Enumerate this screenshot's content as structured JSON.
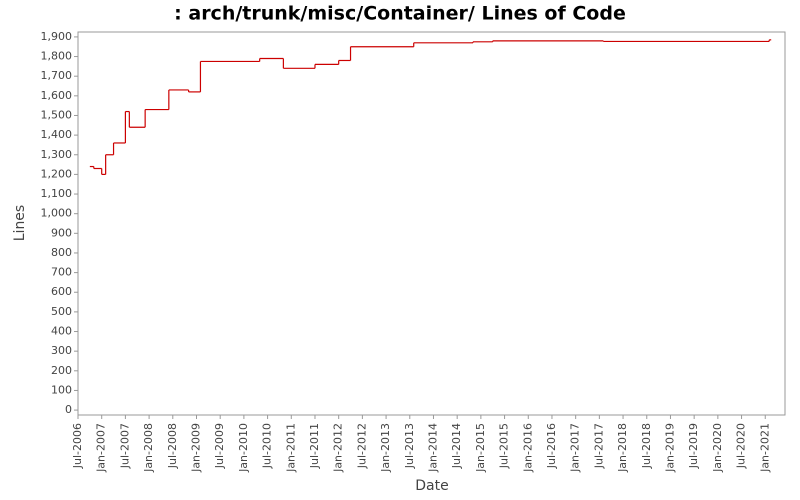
{
  "chart_data": {
    "type": "step",
    "title": ": arch/trunk/misc/Container/ Lines of Code",
    "x_label": "Date",
    "y_label": "Lines",
    "series": [
      {
        "name": "Lines",
        "color": "#cc0000",
        "x": [
          "2006-10",
          "2006-11",
          "2007-01",
          "2007-02",
          "2007-04",
          "2007-07",
          "2007-08",
          "2007-12",
          "2008-06",
          "2008-11",
          "2009-02",
          "2010-05",
          "2010-11",
          "2011-07",
          "2012-01",
          "2012-04",
          "2013-08",
          "2014-11",
          "2015-04",
          "2017-08",
          "2021-02"
        ],
        "values": [
          1240,
          1230,
          1200,
          1300,
          1360,
          1520,
          1440,
          1530,
          1630,
          1620,
          1775,
          1790,
          1740,
          1760,
          1780,
          1850,
          1870,
          1875,
          1880,
          1877,
          1885
        ]
      }
    ],
    "xlim": [
      "2006-07",
      "2021-06"
    ],
    "xticks": [
      {
        "value": "2006-07",
        "label": "Jul-2006"
      },
      {
        "value": "2007-01",
        "label": "Jan-2007"
      },
      {
        "value": "2007-07",
        "label": "Jul-2007"
      },
      {
        "value": "2008-01",
        "label": "Jan-2008"
      },
      {
        "value": "2008-07",
        "label": "Jul-2008"
      },
      {
        "value": "2009-01",
        "label": "Jan-2009"
      },
      {
        "value": "2009-07",
        "label": "Jul-2009"
      },
      {
        "value": "2010-01",
        "label": "Jan-2010"
      },
      {
        "value": "2010-07",
        "label": "Jul-2010"
      },
      {
        "value": "2011-01",
        "label": "Jan-2011"
      },
      {
        "value": "2011-07",
        "label": "Jul-2011"
      },
      {
        "value": "2012-01",
        "label": "Jan-2012"
      },
      {
        "value": "2012-07",
        "label": "Jul-2012"
      },
      {
        "value": "2013-01",
        "label": "Jan-2013"
      },
      {
        "value": "2013-07",
        "label": "Jul-2013"
      },
      {
        "value": "2014-01",
        "label": "Jan-2014"
      },
      {
        "value": "2014-07",
        "label": "Jul-2014"
      },
      {
        "value": "2015-01",
        "label": "Jan-2015"
      },
      {
        "value": "2015-07",
        "label": "Jul-2015"
      },
      {
        "value": "2016-01",
        "label": "Jan-2016"
      },
      {
        "value": "2016-07",
        "label": "Jul-2016"
      },
      {
        "value": "2017-01",
        "label": "Jan-2017"
      },
      {
        "value": "2017-07",
        "label": "Jul-2017"
      },
      {
        "value": "2018-01",
        "label": "Jan-2018"
      },
      {
        "value": "2018-07",
        "label": "Jul-2018"
      },
      {
        "value": "2019-01",
        "label": "Jan-2019"
      },
      {
        "value": "2019-07",
        "label": "Jul-2019"
      },
      {
        "value": "2020-01",
        "label": "Jan-2020"
      },
      {
        "value": "2020-07",
        "label": "Jul-2020"
      },
      {
        "value": "2021-01",
        "label": "Jan-2021"
      }
    ],
    "ylim": [
      -25,
      1925
    ],
    "yticks": [
      0,
      100,
      200,
      300,
      400,
      500,
      600,
      700,
      800,
      900,
      {
        "value": 1000,
        "label": "1,000"
      },
      {
        "value": 1100,
        "label": "1,100"
      },
      {
        "value": 1200,
        "label": "1,200"
      },
      {
        "value": 1300,
        "label": "1,300"
      },
      {
        "value": 1400,
        "label": "1,400"
      },
      {
        "value": 1500,
        "label": "1,500"
      },
      {
        "value": 1600,
        "label": "1,600"
      },
      {
        "value": 1700,
        "label": "1,700"
      },
      {
        "value": 1800,
        "label": "1,800"
      },
      {
        "value": 1900,
        "label": "1,900"
      }
    ]
  }
}
